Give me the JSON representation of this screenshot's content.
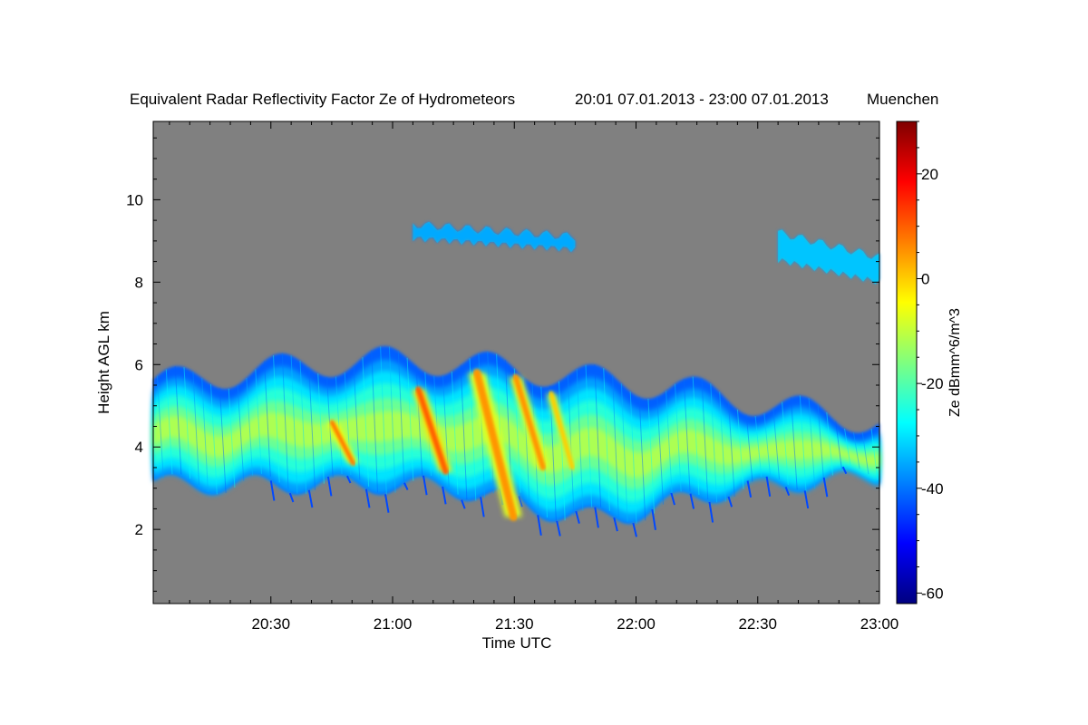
{
  "chart_data": {
    "type": "heatmap",
    "title": "Equivalent Radar Reflectivity Factor Ze of Hydrometeors",
    "time_range": "20:01 07.01.2013 - 23:00 07.01.2013",
    "location": "Muenchen",
    "xlabel": "Time UTC",
    "ylabel": "Height AGL km",
    "x_ticks": [
      "20:30",
      "21:00",
      "21:30",
      "22:00",
      "22:30",
      "23:00"
    ],
    "x_tick_minutes": [
      30,
      60,
      90,
      120,
      150,
      180
    ],
    "xlim_minutes": [
      1,
      180
    ],
    "y_ticks": [
      2,
      4,
      6,
      8,
      10
    ],
    "ylim": [
      0.2,
      11.9
    ],
    "colorbar": {
      "label": "Ze dBmm^6/m^3",
      "ticks": [
        20,
        0,
        -20,
        -40,
        -60
      ],
      "range": [
        -62,
        30
      ],
      "colors": [
        "#00007f",
        "#0000ff",
        "#007fff",
        "#00ffff",
        "#7fff7f",
        "#ffff00",
        "#ff7f00",
        "#ff0000",
        "#7f0000"
      ]
    },
    "background_color": "#808080",
    "features": [
      {
        "name": "main-cloud-layer",
        "time_minutes": [
          1,
          180
        ],
        "height_km": [
          3.0,
          6.1
        ],
        "ze_dbz": [
          -40,
          -10
        ]
      },
      {
        "name": "upper-cloud-1",
        "time_minutes": [
          65,
          105
        ],
        "height_km": [
          8.8,
          9.4
        ],
        "ze_dbz": [
          -35,
          -30
        ]
      },
      {
        "name": "upper-cloud-2",
        "time_minutes": [
          155,
          180
        ],
        "height_km": [
          8.0,
          9.2
        ],
        "ze_dbz": [
          -35,
          -25
        ]
      },
      {
        "name": "fall-streak-1",
        "time_minutes": [
          44,
          51
        ],
        "height_km": [
          3.6,
          4.6
        ],
        "ze_dbz": [
          5,
          10
        ]
      },
      {
        "name": "fall-streak-2",
        "time_minutes": [
          65,
          74
        ],
        "height_km": [
          3.4,
          5.4
        ],
        "ze_dbz": [
          5,
          15
        ]
      },
      {
        "name": "fall-streak-3",
        "time_minutes": [
          79,
          91
        ],
        "height_km": [
          2.3,
          5.8
        ],
        "ze_dbz": [
          0,
          10
        ]
      },
      {
        "name": "fall-streak-4",
        "time_minutes": [
          89,
          98
        ],
        "height_km": [
          3.5,
          5.7
        ],
        "ze_dbz": [
          0,
          10
        ]
      },
      {
        "name": "fall-streak-5",
        "time_minutes": [
          98,
          105
        ],
        "height_km": [
          3.5,
          5.3
        ],
        "ze_dbz": [
          -5,
          5
        ]
      }
    ]
  }
}
